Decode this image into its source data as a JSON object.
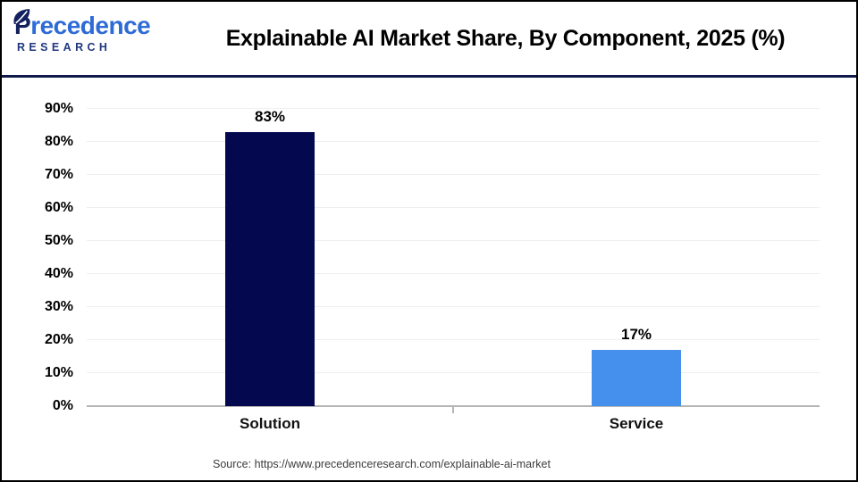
{
  "logo": {
    "brand_p": "P",
    "brand_rest": "recedence",
    "brand_bottom": "RESEARCH"
  },
  "header": {
    "title": "Explainable AI Market Share, By Component, 2025 (%)"
  },
  "chart_data": {
    "type": "bar",
    "title": "Explainable AI Market Share, By Component, 2025 (%)",
    "categories": [
      "Solution",
      "Service"
    ],
    "values": [
      83,
      17
    ],
    "value_labels": [
      "83%",
      "17%"
    ],
    "bar_colors": [
      "#04094F",
      "#4590EC"
    ],
    "y_ticks": [
      "0%",
      "10%",
      "20%",
      "30%",
      "40%",
      "50%",
      "60%",
      "70%",
      "80%",
      "90%"
    ],
    "ylim": [
      0,
      90
    ],
    "grid": true,
    "legend": false,
    "xlabel": "",
    "ylabel": ""
  },
  "footer": {
    "source": "Source: https://www.precedenceresearch.com/explainable-ai-market"
  },
  "colors": {
    "solution_bar": "#04094F",
    "service_bar": "#4590EC",
    "header_divider": "#101A4A",
    "axis_line": "#B5B5B5",
    "gridline": "#EFEFEF",
    "logo_blue": "#2E6BD6",
    "logo_navy": "#13205E"
  }
}
